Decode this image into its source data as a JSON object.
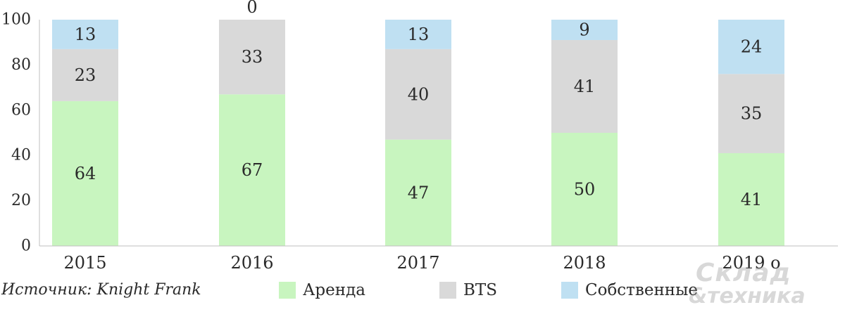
{
  "chart_data": {
    "type": "bar",
    "stacked": true,
    "categories": [
      "2015",
      "2016",
      "2017",
      "2018",
      "2019 о"
    ],
    "series": [
      {
        "name": "Аренда",
        "color": "#c8f5bf",
        "values": [
          64,
          67,
          47,
          50,
          41
        ]
      },
      {
        "name": "BTS",
        "color": "#d9d9d9",
        "values": [
          23,
          33,
          40,
          41,
          35
        ]
      },
      {
        "name": "Собственные",
        "color": "#bfe0f2",
        "values": [
          13,
          0,
          13,
          9,
          24
        ]
      }
    ],
    "ylim": [
      0,
      100
    ],
    "yticks": [
      0,
      20,
      40,
      60,
      80,
      100
    ],
    "grid": false,
    "legend_position": "bottom"
  },
  "source": "Источник: Knight Frank",
  "legend": {
    "items": [
      {
        "label": "Аренда",
        "color": "#c8f5bf"
      },
      {
        "label": "BTS",
        "color": "#d9d9d9"
      },
      {
        "label": "Собственные",
        "color": "#bfe0f2"
      }
    ]
  },
  "watermark": {
    "line1": "Склад",
    "line2": "&техника"
  }
}
